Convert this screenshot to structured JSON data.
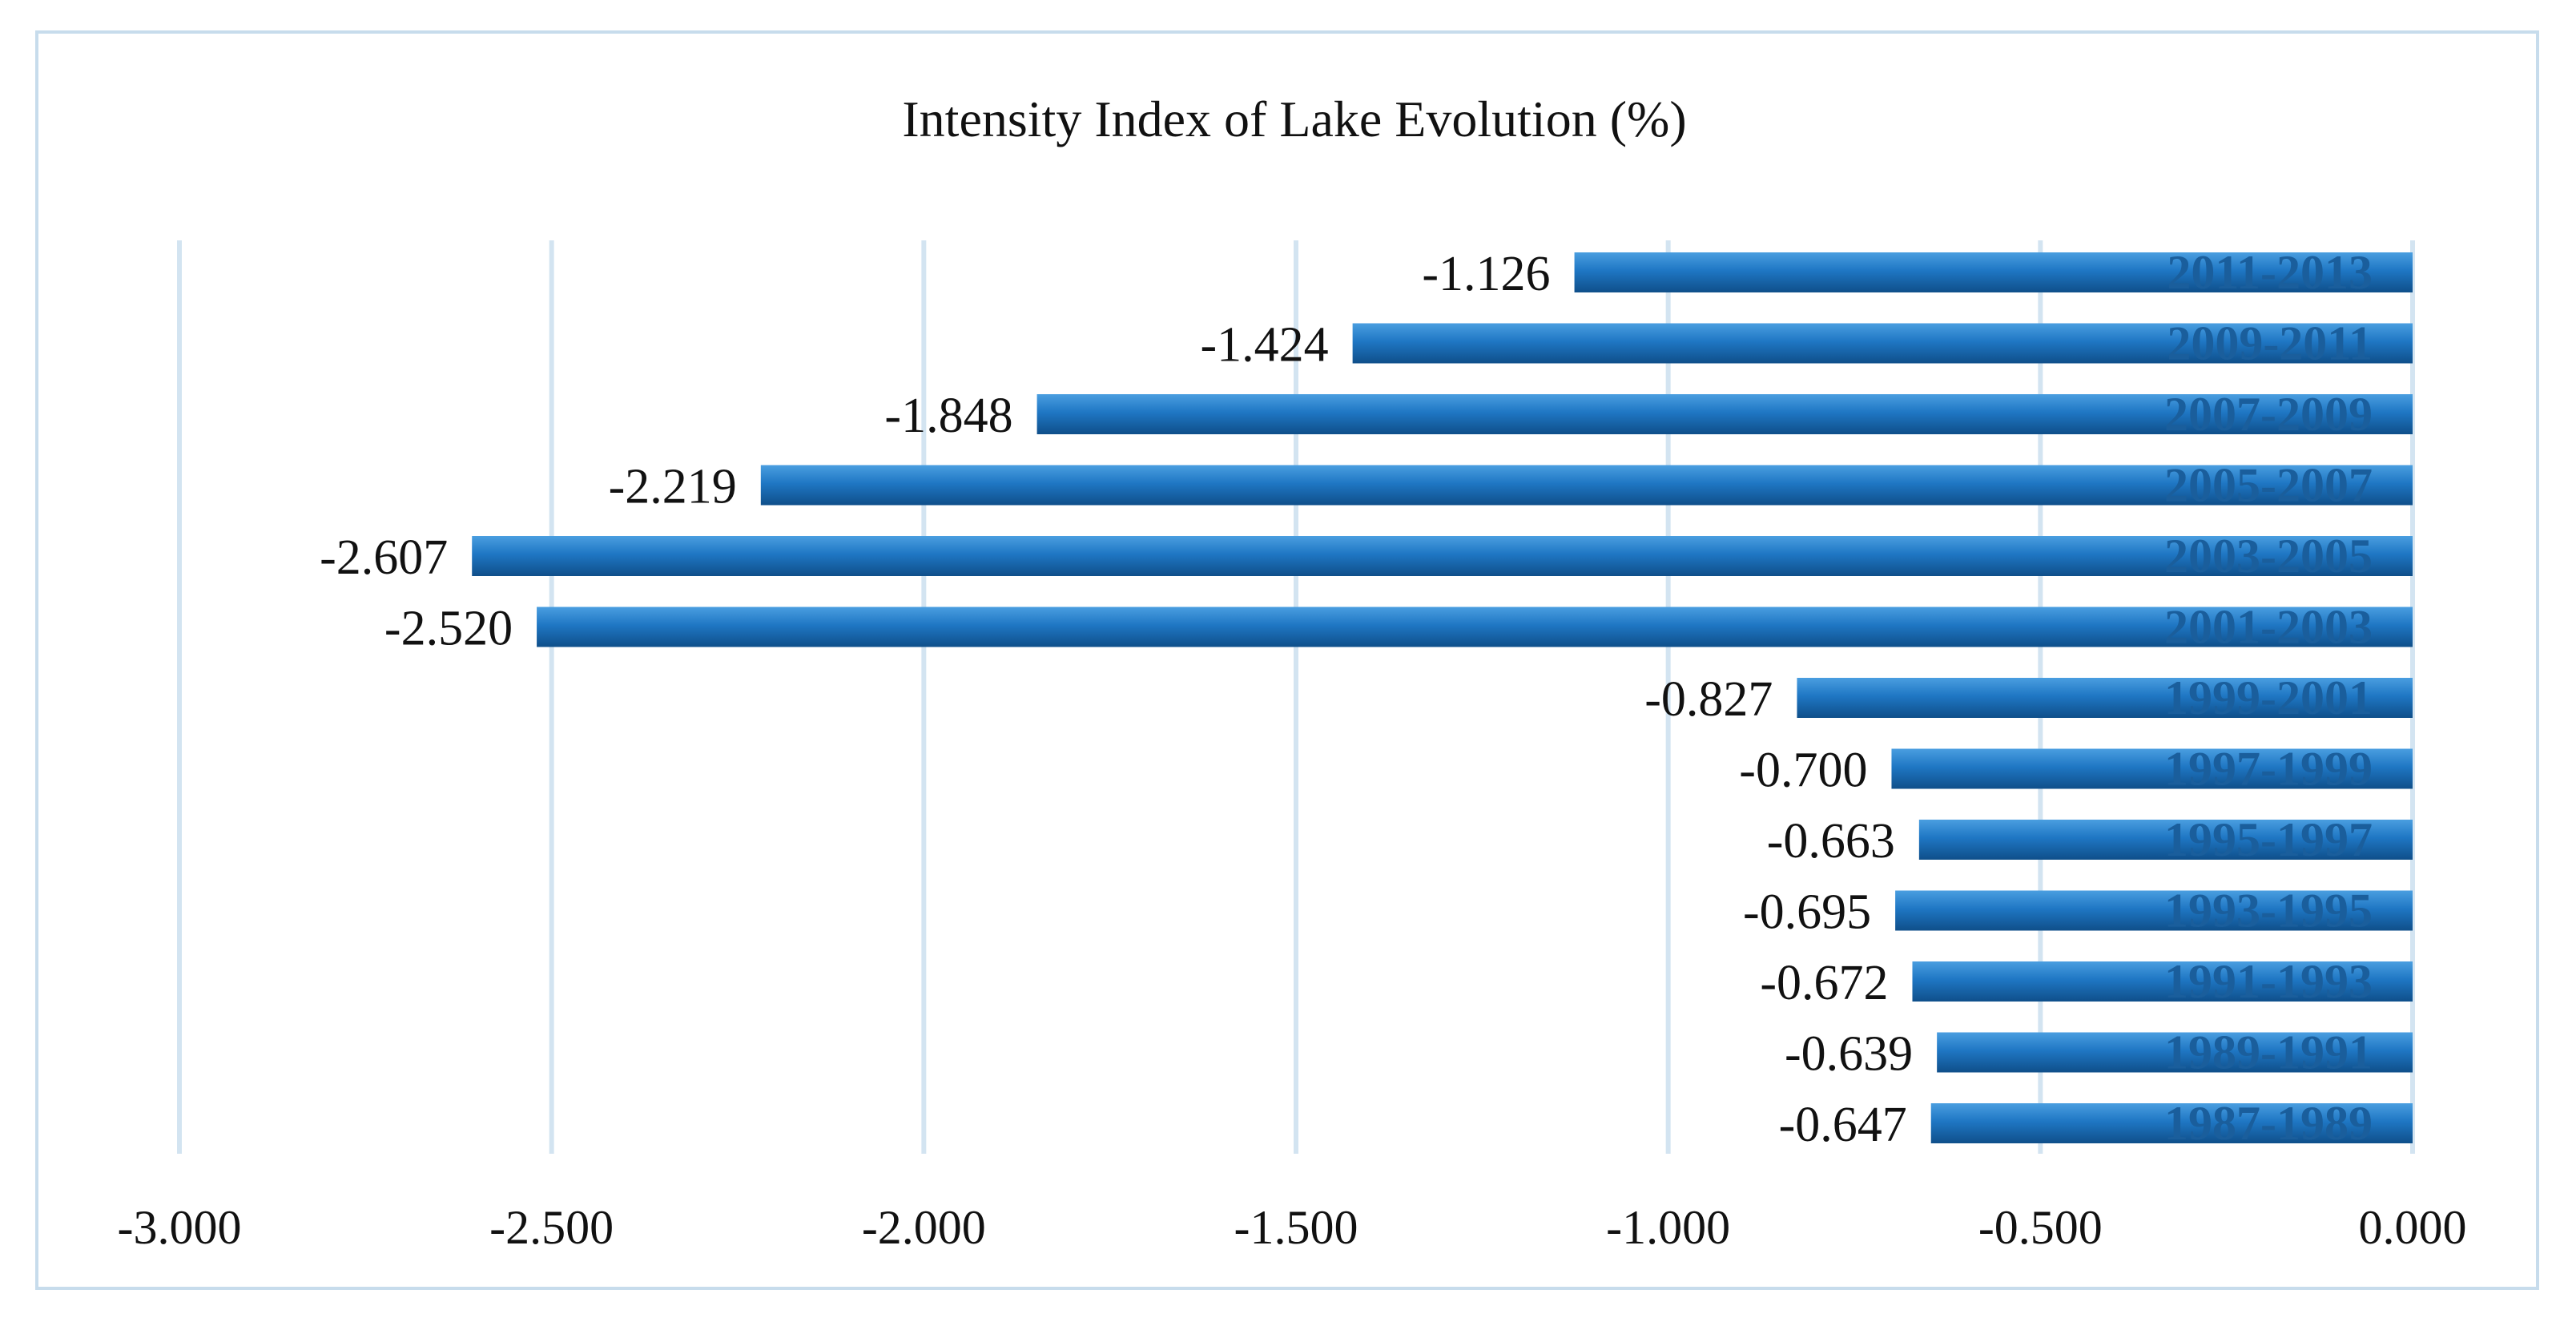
{
  "chart_data": {
    "type": "bar",
    "orientation": "horizontal",
    "title": "Intensity Index of Lake Evolution (%)",
    "xlabel": "",
    "ylabel": "",
    "categories": [
      "1987-1989",
      "1989-1991",
      "1991-1993",
      "1993-1995",
      "1995-1997",
      "1997-1999",
      "1999-2001",
      "2001-2003",
      "2003-2005",
      "2005-2007",
      "2007-2009",
      "2009-2011",
      "2011-2013"
    ],
    "values": [
      -0.647,
      -0.639,
      -0.672,
      -0.695,
      -0.663,
      -0.7,
      -0.827,
      -2.52,
      -2.607,
      -2.219,
      -1.848,
      -1.424,
      -1.126
    ],
    "value_labels": [
      "-0.647",
      "-0.639",
      "-0.672",
      "-0.695",
      "-0.663",
      "-0.700",
      "-0.827",
      "-2.520",
      "-2.607",
      "-2.219",
      "-1.848",
      "-1.424",
      "-1.126"
    ],
    "xlim": [
      -3.0,
      0.0
    ],
    "x_ticks": [
      -3.0,
      -2.5,
      -2.0,
      -1.5,
      -1.0,
      -0.5,
      0.0
    ],
    "x_tick_labels": [
      "-3.000",
      "-2.500",
      "-2.000",
      "-1.500",
      "-1.000",
      "-0.500",
      "0.000"
    ],
    "grid": true,
    "legend": "none",
    "colors": {
      "bar": "#1f77c4",
      "bar_highlight": "#4a9ee0",
      "bar_shadow": "#0f4f8a",
      "gridline": "#d3e4f1",
      "frame": "#c7dcec",
      "category_label": "#1a5e9c"
    }
  }
}
